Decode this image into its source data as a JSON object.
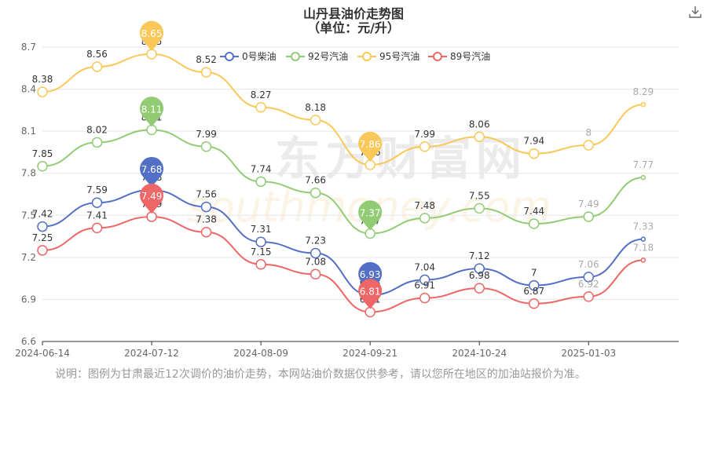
{
  "header": {
    "title": "山丹县油价走势图",
    "subtitle": "（单位：元/升）"
  },
  "note": "说明：图例为甘肃最近12次调价的油价走势，本网站油价数据仅供参考，请以您所在地区的加油站报价为准。",
  "watermark": {
    "cn": "东方财富网",
    "en": "southmoney.com"
  },
  "toolbar": {
    "download_icon": "download-icon"
  },
  "chart_data": {
    "type": "line",
    "x_ticks": [
      "2024-06-14",
      "2024-07-12",
      "2024-08-09",
      "2024-09-21",
      "2024-10-24",
      "2025-01-03"
    ],
    "ylim": [
      6.6,
      8.7
    ],
    "y_ticks": [
      6.6,
      6.9,
      7.2,
      7.5,
      7.8,
      8.1,
      8.4,
      8.7
    ],
    "legend_position": "top-center",
    "series": [
      {
        "name": "0号柴油",
        "color": "#5470c6",
        "values": [
          7.42,
          7.59,
          7.68,
          7.56,
          7.31,
          7.23,
          6.93,
          7.04,
          7.12,
          7,
          7.06,
          7.33
        ],
        "max_marker": {
          "index": 2,
          "label": "7.68"
        },
        "min_marker": {
          "index": 6,
          "label": "6.93"
        }
      },
      {
        "name": "92号汽油",
        "color": "#91cc75",
        "values": [
          7.85,
          8.02,
          8.11,
          7.99,
          7.74,
          7.66,
          7.37,
          7.48,
          7.55,
          7.44,
          7.49,
          7.77
        ],
        "max_marker": {
          "index": 2,
          "label": "8.11"
        },
        "min_marker": {
          "index": 6,
          "label": "7.37"
        }
      },
      {
        "name": "95号汽油",
        "color": "#fac858",
        "values": [
          8.38,
          8.56,
          8.65,
          8.52,
          8.27,
          8.18,
          7.86,
          7.99,
          8.06,
          7.94,
          8,
          8.29
        ],
        "max_marker": {
          "index": 2,
          "label": "8.65"
        },
        "min_marker": {
          "index": 6,
          "label": "7.86"
        }
      },
      {
        "name": "89号汽油",
        "color": "#ee6666",
        "values": [
          7.25,
          7.41,
          7.49,
          7.38,
          7.15,
          7.08,
          6.81,
          6.91,
          6.98,
          6.87,
          6.92,
          7.18
        ],
        "max_marker": {
          "index": 2,
          "label": "7.49"
        },
        "min_marker": {
          "index": 6,
          "label": "6.81"
        }
      }
    ]
  }
}
